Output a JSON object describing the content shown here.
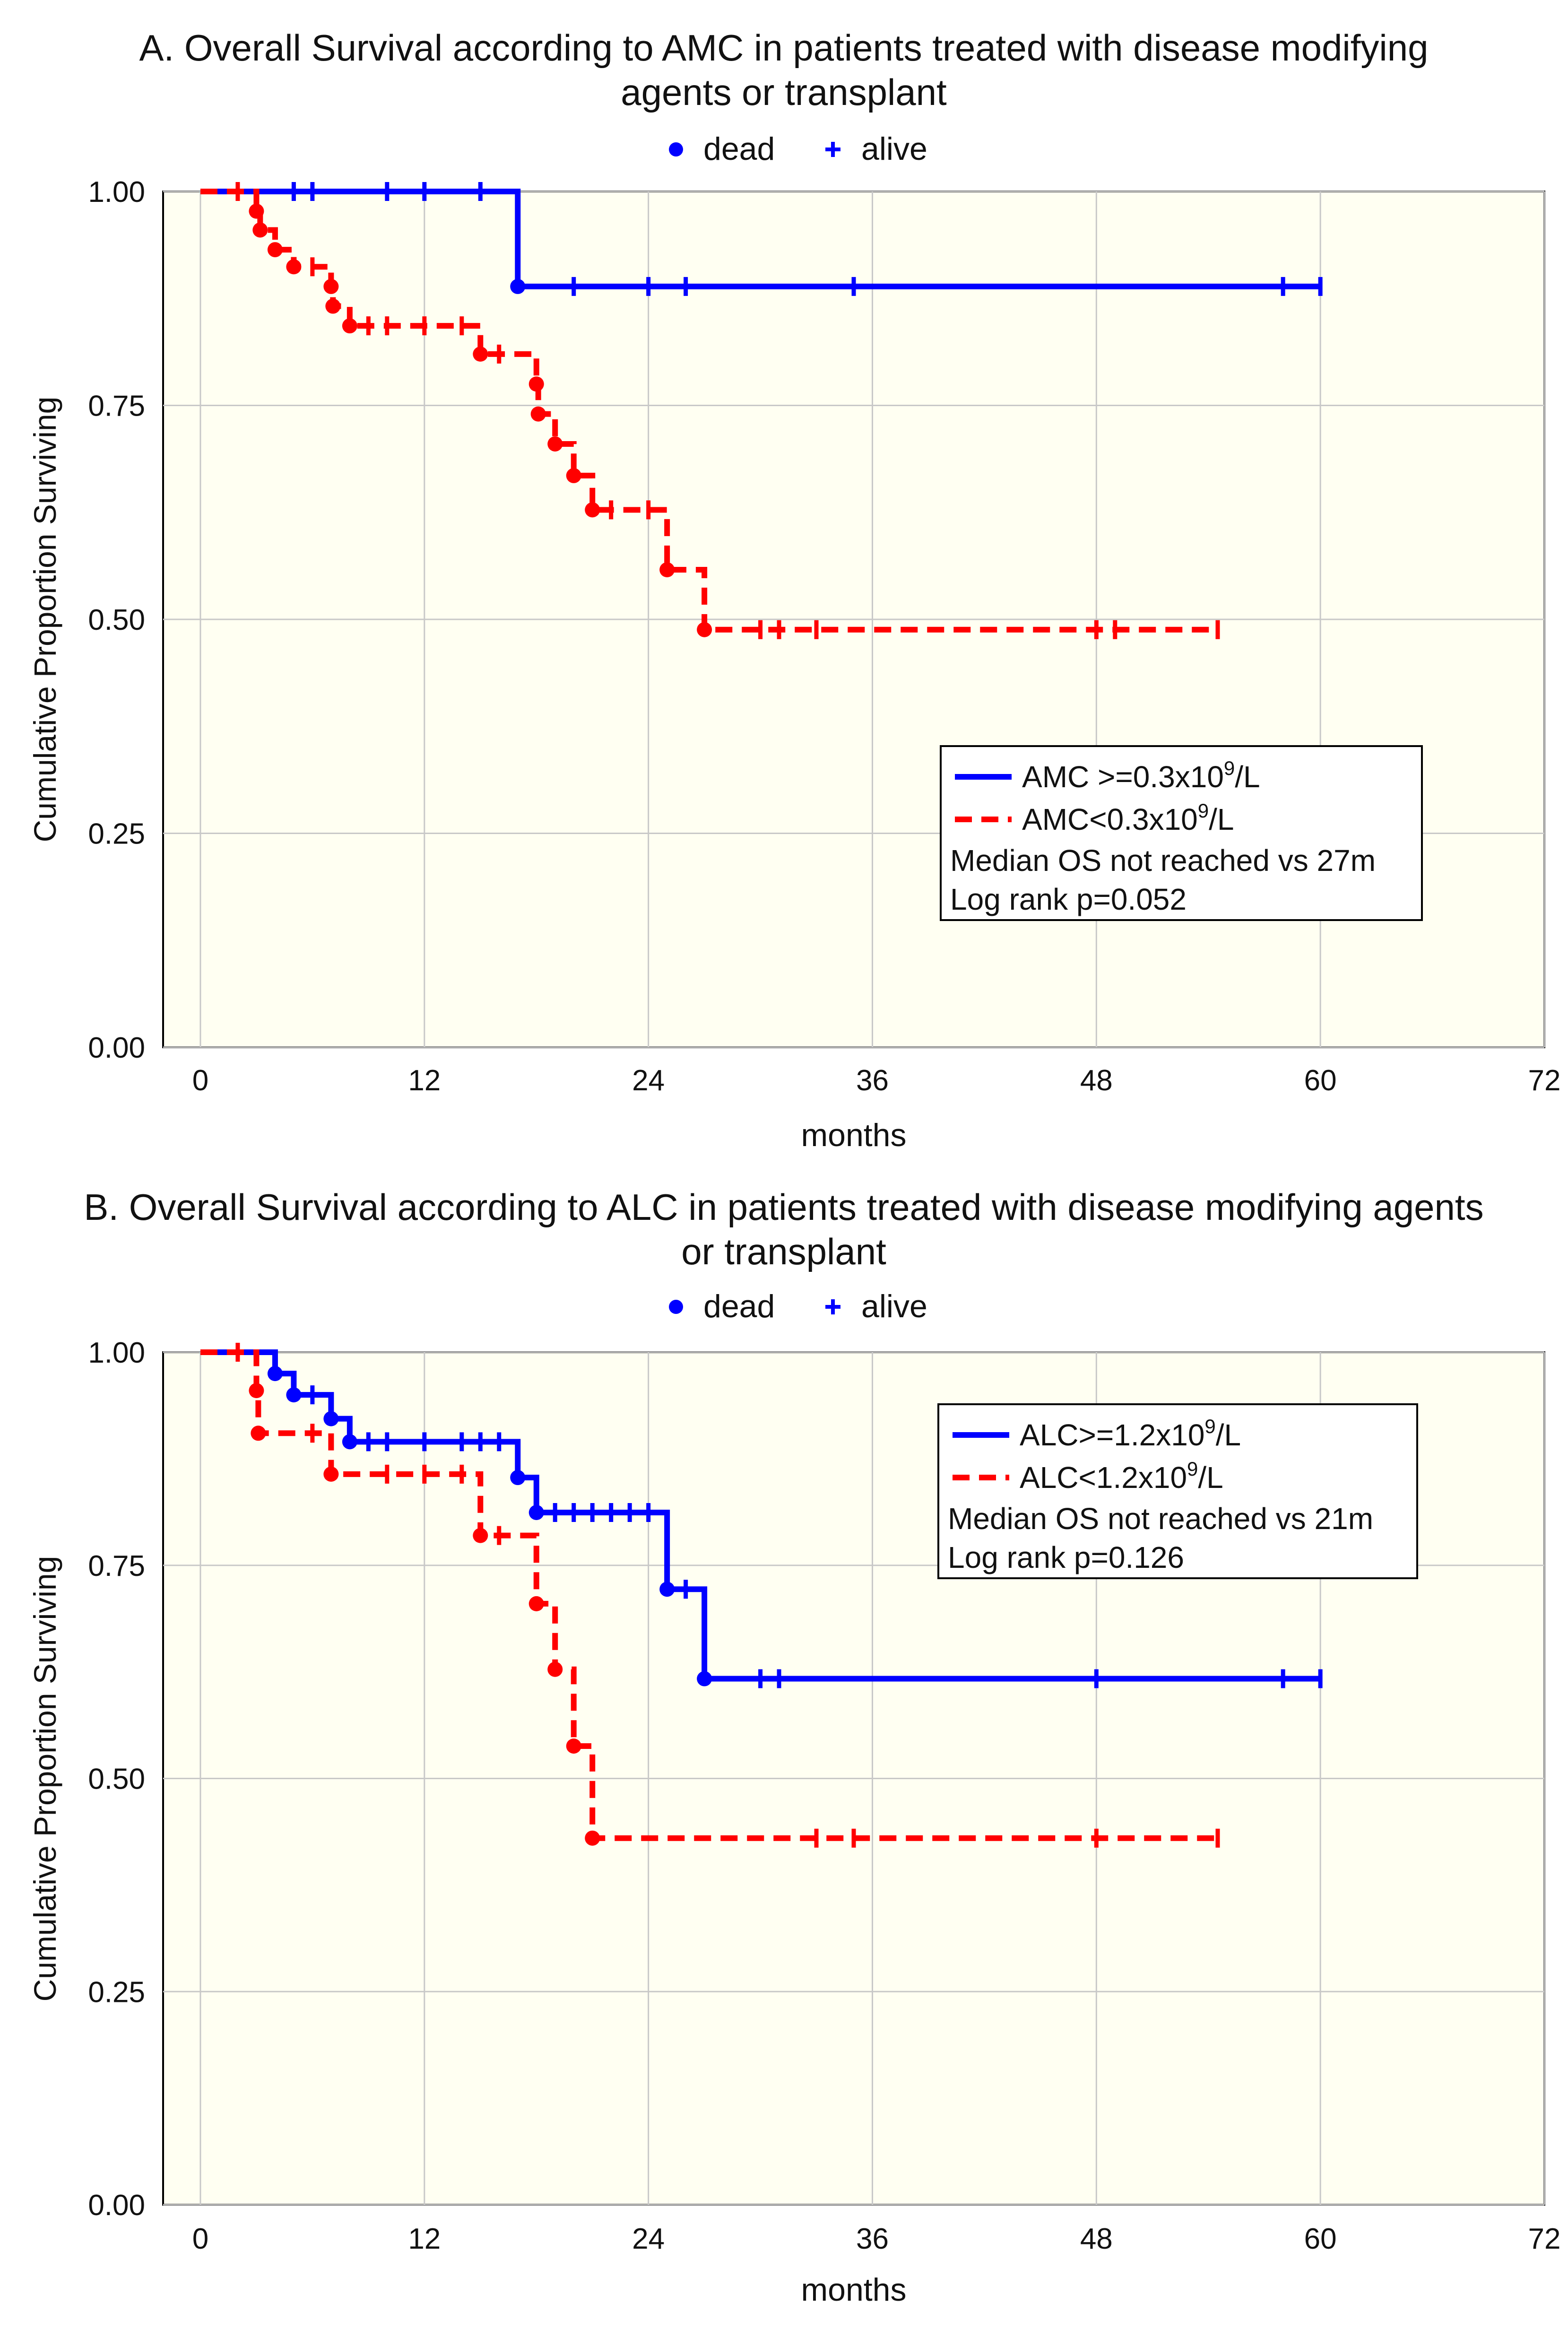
{
  "chart_data": [
    {
      "type": "line",
      "title": "A. Overall Survival according to AMC in patients treated with disease modifying",
      "subtitle": "agents or transplant",
      "top_legend": {
        "dead": "dead",
        "alive": "alive"
      },
      "xlabel": "months",
      "ylabel": "Cumulative Proportion Surviving",
      "xlim": [
        -2,
        72
      ],
      "ylim": [
        0,
        1.0
      ],
      "xticks": [
        "0",
        "12",
        "24",
        "36",
        "48",
        "60",
        "72"
      ],
      "yticks": [
        "0.00",
        "0.25",
        "0.50",
        "0.75",
        "1.00"
      ],
      "grid": true,
      "legend_position": "lower-right",
      "legend": {
        "series1_prefix": "AMC >=0.3x10",
        "series1_sup": "9",
        "series1_suffix": "/L",
        "series2_prefix": "AMC<0.3x10",
        "series2_sup": "9",
        "series2_suffix": "/L",
        "note1": "Median OS not reached vs 27m",
        "note2": "Log rank p=0.052"
      },
      "series": [
        {
          "color": "#0000ff",
          "dash": false,
          "steps": [
            [
              0,
              1.0
            ],
            [
              17,
              0.889
            ],
            [
              60,
              0.889
            ]
          ],
          "events": [
            [
              17,
              0.889
            ]
          ],
          "censored": [
            [
              5,
              1.0
            ],
            [
              6,
              1.0
            ],
            [
              10,
              1.0
            ],
            [
              12,
              1.0
            ],
            [
              15,
              1.0
            ],
            [
              20,
              0.889
            ],
            [
              24,
              0.889
            ],
            [
              26,
              0.889
            ],
            [
              35,
              0.889
            ],
            [
              58,
              0.889
            ],
            [
              60,
              0.889
            ]
          ]
        },
        {
          "color": "#ff0000",
          "dash": true,
          "steps": [
            [
              0,
              1.0
            ],
            [
              3,
              0.977
            ],
            [
              3.2,
              0.955
            ],
            [
              4,
              0.932
            ],
            [
              5,
              0.912
            ],
            [
              7,
              0.889
            ],
            [
              7.1,
              0.866
            ],
            [
              8,
              0.843
            ],
            [
              15,
              0.81
            ],
            [
              18,
              0.775
            ],
            [
              18.1,
              0.74
            ],
            [
              19,
              0.705
            ],
            [
              20,
              0.668
            ],
            [
              21,
              0.628
            ],
            [
              25,
              0.558
            ],
            [
              27,
              0.488
            ],
            [
              54.5,
              0.488
            ]
          ],
          "events": [
            [
              3,
              0.977
            ],
            [
              3.2,
              0.955
            ],
            [
              4,
              0.932
            ],
            [
              5,
              0.912
            ],
            [
              7,
              0.889
            ],
            [
              7.1,
              0.866
            ],
            [
              8,
              0.843
            ],
            [
              15,
              0.81
            ],
            [
              18,
              0.775
            ],
            [
              18.1,
              0.74
            ],
            [
              19,
              0.705
            ],
            [
              20,
              0.668
            ],
            [
              21,
              0.628
            ],
            [
              25,
              0.558
            ],
            [
              27,
              0.488
            ]
          ],
          "censored": [
            [
              2,
              1.0
            ],
            [
              6,
              0.912
            ],
            [
              9,
              0.843
            ],
            [
              10,
              0.843
            ],
            [
              12,
              0.843
            ],
            [
              14,
              0.843
            ],
            [
              16,
              0.81
            ],
            [
              22,
              0.628
            ],
            [
              24,
              0.628
            ],
            [
              30,
              0.488
            ],
            [
              31,
              0.488
            ],
            [
              33,
              0.488
            ],
            [
              48,
              0.488
            ],
            [
              49,
              0.488
            ],
            [
              54.5,
              0.488
            ]
          ]
        }
      ]
    },
    {
      "type": "line",
      "title": "B. Overall Survival according to ALC in patients treated with disease modifying agents",
      "subtitle": "or transplant",
      "top_legend": {
        "dead": "dead",
        "alive": "alive"
      },
      "xlabel": "months",
      "ylabel": "Cumulative Proportion Surviving",
      "xlim": [
        -2,
        72
      ],
      "ylim": [
        0,
        1.0
      ],
      "xticks": [
        "0",
        "12",
        "24",
        "36",
        "48",
        "60",
        "72"
      ],
      "yticks": [
        "0.00",
        "0.25",
        "0.50",
        "0.75",
        "1.00"
      ],
      "grid": true,
      "legend_position": "top-right",
      "legend": {
        "series1_prefix": "ALC>=1.2x10",
        "series1_sup": "9",
        "series1_suffix": "/L",
        "series2_prefix": "ALC<1.2x10",
        "series2_sup": "9",
        "series2_suffix": "/L",
        "note1": "Median OS not reached vs 21m",
        "note2": "Log rank p=0.126"
      },
      "series": [
        {
          "color": "#0000ff",
          "dash": false,
          "steps": [
            [
              0,
              1.0
            ],
            [
              4,
              0.975
            ],
            [
              5,
              0.95
            ],
            [
              7,
              0.922
            ],
            [
              8,
              0.895
            ],
            [
              17,
              0.853
            ],
            [
              18,
              0.812
            ],
            [
              25,
              0.722
            ],
            [
              27,
              0.617
            ],
            [
              60,
              0.617
            ]
          ],
          "events": [
            [
              4,
              0.975
            ],
            [
              5,
              0.95
            ],
            [
              7,
              0.922
            ],
            [
              8,
              0.895
            ],
            [
              17,
              0.853
            ],
            [
              18,
              0.812
            ],
            [
              25,
              0.722
            ],
            [
              27,
              0.617
            ]
          ],
          "censored": [
            [
              6,
              0.95
            ],
            [
              9,
              0.895
            ],
            [
              10,
              0.895
            ],
            [
              12,
              0.895
            ],
            [
              14,
              0.895
            ],
            [
              15,
              0.895
            ],
            [
              16,
              0.895
            ],
            [
              19,
              0.812
            ],
            [
              20,
              0.812
            ],
            [
              21,
              0.812
            ],
            [
              22,
              0.812
            ],
            [
              23,
              0.812
            ],
            [
              24,
              0.812
            ],
            [
              26,
              0.722
            ],
            [
              30,
              0.617
            ],
            [
              31,
              0.617
            ],
            [
              48,
              0.617
            ],
            [
              58,
              0.617
            ],
            [
              60,
              0.617
            ]
          ]
        },
        {
          "color": "#ff0000",
          "dash": true,
          "steps": [
            [
              0,
              1.0
            ],
            [
              3,
              0.955
            ],
            [
              3.1,
              0.905
            ],
            [
              7,
              0.857
            ],
            [
              15,
              0.785
            ],
            [
              18,
              0.705
            ],
            [
              19,
              0.628
            ],
            [
              20,
              0.538
            ],
            [
              21,
              0.43
            ],
            [
              54.5,
              0.43
            ]
          ],
          "events": [
            [
              3,
              0.955
            ],
            [
              3.1,
              0.905
            ],
            [
              7,
              0.857
            ],
            [
              15,
              0.785
            ],
            [
              18,
              0.705
            ],
            [
              19,
              0.628
            ],
            [
              20,
              0.538
            ],
            [
              21,
              0.43
            ]
          ],
          "censored": [
            [
              2,
              1.0
            ],
            [
              6,
              0.905
            ],
            [
              10,
              0.857
            ],
            [
              12,
              0.857
            ],
            [
              14,
              0.857
            ],
            [
              16,
              0.785
            ],
            [
              33,
              0.43
            ],
            [
              35,
              0.43
            ],
            [
              48,
              0.43
            ],
            [
              54.5,
              0.43
            ]
          ]
        }
      ]
    }
  ]
}
